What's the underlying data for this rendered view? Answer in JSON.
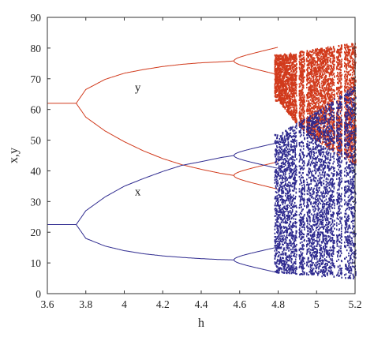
{
  "chart_data": {
    "type": "scatter",
    "title": "",
    "xlabel": "h",
    "ylabel": "x,y",
    "xlim": [
      3.6,
      5.2
    ],
    "ylim": [
      0,
      90
    ],
    "xticks": [
      "3.6",
      "3.8",
      "4",
      "4.2",
      "4.4",
      "4.6",
      "4.8",
      "5",
      "5.2"
    ],
    "yticks": [
      "0",
      "10",
      "20",
      "30",
      "40",
      "50",
      "60",
      "70",
      "80",
      "90"
    ],
    "grid": false,
    "legend": "none",
    "annotations": [
      {
        "text": "y",
        "x": 4.07,
        "y": 66
      },
      {
        "text": "x",
        "x": 4.07,
        "y": 32
      }
    ],
    "series": [
      {
        "name": "y",
        "color": "#d13a1c",
        "branches": {
          "fixed_point": {
            "h": [
              3.6,
              3.75
            ],
            "value": 62
          },
          "period2_start": 3.75,
          "period2_end": 4.57,
          "period2_upper": {
            "h": [
              3.75,
              3.8,
              3.9,
              4.0,
              4.1,
              4.2,
              4.3,
              4.4,
              4.5,
              4.57
            ],
            "y": [
              62,
              66.5,
              69.8,
              71.8,
              73.0,
              74.0,
              74.7,
              75.2,
              75.5,
              75.8
            ]
          },
          "period2_lower": {
            "h": [
              3.75,
              3.8,
              3.9,
              4.0,
              4.1,
              4.2,
              4.3,
              4.4,
              4.5,
              4.57
            ],
            "y": [
              62,
              57.5,
              53.0,
              49.5,
              46.5,
              44.0,
              42.0,
              40.5,
              39.2,
              38.5
            ]
          },
          "chaos_band": {
            "h": [
              4.8,
              4.9,
              5.0,
              5.1,
              5.2
            ],
            "upper": [
              78,
              79,
              80,
              81,
              82
            ],
            "lower": [
              63,
              55,
              50,
              46,
              42
            ]
          }
        }
      },
      {
        "name": "x",
        "color": "#2e2a8f",
        "branches": {
          "fixed_point": {
            "h": [
              3.6,
              3.75
            ],
            "value": 22.5
          },
          "period2_start": 3.75,
          "period2_end": 4.57,
          "period2_upper": {
            "h": [
              3.75,
              3.8,
              3.9,
              4.0,
              4.1,
              4.2,
              4.3,
              4.4,
              4.5,
              4.57
            ],
            "y": [
              22.5,
              27,
              31.5,
              35.0,
              37.5,
              39.8,
              41.8,
              43.0,
              44.3,
              45.0
            ]
          },
          "period2_lower": {
            "h": [
              3.75,
              3.8,
              3.9,
              4.0,
              4.1,
              4.2,
              4.3,
              4.4,
              4.5,
              4.57
            ],
            "y": [
              22.5,
              18.0,
              15.5,
              14.0,
              13.0,
              12.3,
              11.8,
              11.4,
              11.1,
              11.0
            ]
          },
          "chaos_band": {
            "h": [
              4.8,
              4.9,
              5.0,
              5.1,
              5.2
            ],
            "upper": [
              52,
              56,
              60,
              64,
              68
            ],
            "lower": [
              7,
              6.5,
              6,
              5.5,
              5
            ]
          }
        }
      }
    ]
  }
}
